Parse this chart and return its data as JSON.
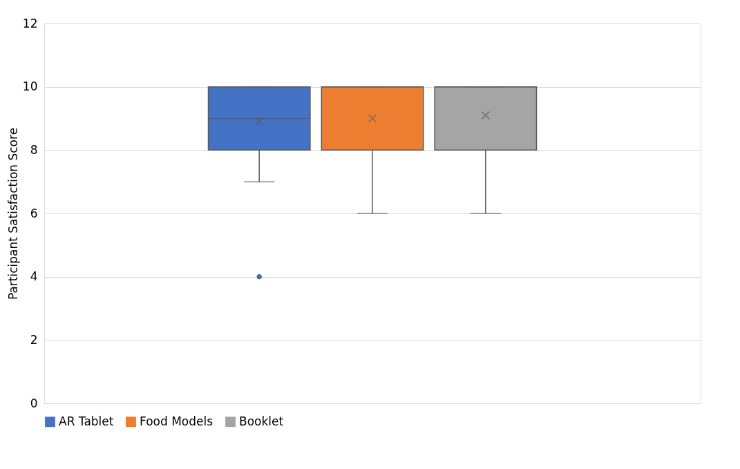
{
  "chart_data": {
    "type": "box",
    "ylabel": "Participant Satisfaction Score",
    "categories": [
      null
    ],
    "series": [
      {
        "name": "AR Tablet",
        "color": "#4472c4",
        "boxes": [
          {
            "low": 7,
            "q1": 8,
            "median": 9,
            "q3": 10,
            "high": 10,
            "mean": 8.9,
            "outliers": [
              4
            ]
          }
        ]
      },
      {
        "name": "Food Models",
        "color": "#ed7d31",
        "boxes": [
          {
            "low": 6,
            "q1": 8,
            "median": 10,
            "q3": 10,
            "high": 10,
            "mean": 9.0
          }
        ]
      },
      {
        "name": "Booklet",
        "color": "#a5a5a5",
        "boxes": [
          {
            "low": 6,
            "q1": 8,
            "median": 10,
            "q3": 10,
            "high": 10,
            "mean": 9.1
          }
        ]
      }
    ],
    "ylim": [
      0,
      12
    ],
    "yticks": [
      0,
      2,
      4,
      6,
      8,
      10,
      12
    ],
    "grid": "y",
    "legend": "bottom",
    "tick_labels": "y"
  }
}
